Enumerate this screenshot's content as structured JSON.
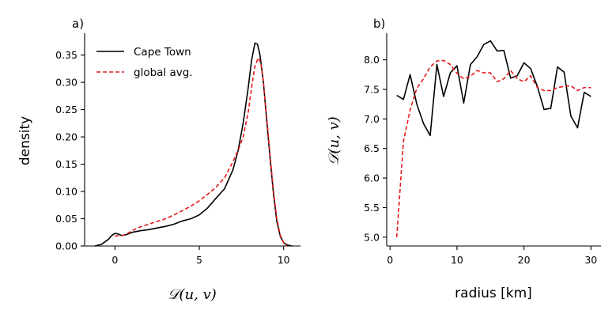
{
  "chart_data": [
    {
      "type": "line",
      "panel_label": "a)",
      "xlabel": "𝒟(u, v)",
      "ylabel": "density",
      "xlim": [
        -1.8,
        11.0
      ],
      "ylim": [
        0.0,
        0.39
      ],
      "xticks": [
        0,
        5,
        10
      ],
      "yticks": [
        0.0,
        0.05,
        0.1,
        0.15,
        0.2,
        0.25,
        0.3,
        0.35
      ],
      "xtick_labels": [
        "0",
        "5",
        "10"
      ],
      "ytick_labels": [
        "0.00",
        "0.05",
        "0.10",
        "0.15",
        "0.20",
        "0.25",
        "0.30",
        "0.35"
      ],
      "grid": false,
      "legend_position": "top-left",
      "series": [
        {
          "name": "Cape Town",
          "color": "#000000",
          "style": "solid",
          "x": [
            -1.2,
            -0.8,
            -0.4,
            -0.2,
            0,
            0.2,
            0.4,
            0.7,
            1.0,
            1.5,
            2.0,
            2.5,
            3.0,
            3.5,
            4.0,
            4.5,
            5.0,
            5.5,
            6.0,
            6.5,
            7.0,
            7.3,
            7.6,
            7.9,
            8.1,
            8.3,
            8.45,
            8.6,
            8.8,
            9.0,
            9.2,
            9.4,
            9.6,
            9.8,
            10.0,
            10.2,
            10.5
          ],
          "y": [
            0.0,
            0.003,
            0.012,
            0.019,
            0.023,
            0.022,
            0.019,
            0.021,
            0.025,
            0.028,
            0.03,
            0.033,
            0.036,
            0.04,
            0.046,
            0.05,
            0.057,
            0.07,
            0.088,
            0.105,
            0.14,
            0.175,
            0.225,
            0.29,
            0.34,
            0.372,
            0.37,
            0.35,
            0.3,
            0.23,
            0.16,
            0.095,
            0.045,
            0.018,
            0.006,
            0.002,
            0.0
          ]
        },
        {
          "name": "global avg.",
          "color": "#e41a1c",
          "style": "dashed",
          "x": [
            0,
            0.2,
            0.4,
            0.7,
            1.0,
            1.5,
            2.0,
            2.5,
            3.0,
            3.5,
            4.0,
            4.5,
            5.0,
            5.5,
            6.0,
            6.5,
            7.0,
            7.3,
            7.6,
            7.9,
            8.1,
            8.3,
            8.5,
            8.65,
            8.8,
            9.0,
            9.2,
            9.4,
            9.6,
            9.8,
            10.0,
            10.2
          ],
          "y": [
            0.018,
            0.019,
            0.019,
            0.022,
            0.028,
            0.035,
            0.04,
            0.045,
            0.05,
            0.057,
            0.065,
            0.073,
            0.083,
            0.095,
            0.108,
            0.125,
            0.155,
            0.175,
            0.2,
            0.245,
            0.29,
            0.33,
            0.345,
            0.335,
            0.3,
            0.235,
            0.165,
            0.1,
            0.05,
            0.02,
            0.006,
            0.0
          ]
        }
      ]
    },
    {
      "type": "line",
      "panel_label": "b)",
      "xlabel": "radius [km]",
      "ylabel": "𝒟(u, v)",
      "xlim": [
        -0.5,
        31.5
      ],
      "ylim": [
        4.85,
        8.45
      ],
      "xticks": [
        0,
        10,
        20,
        30
      ],
      "yticks": [
        5.0,
        5.5,
        6.0,
        6.5,
        7.0,
        7.5,
        8.0
      ],
      "xtick_labels": [
        "0",
        "10",
        "20",
        "30"
      ],
      "ytick_labels": [
        "5.0",
        "5.5",
        "6.0",
        "6.5",
        "7.0",
        "7.5",
        "8.0"
      ],
      "grid": false,
      "series": [
        {
          "name": "Cape Town",
          "color": "#000000",
          "style": "solid",
          "x": [
            1,
            2,
            3,
            4,
            5,
            6,
            7,
            8,
            9,
            10,
            11,
            12,
            13,
            14,
            15,
            16,
            17,
            18,
            19,
            20,
            21,
            22,
            23,
            24,
            25,
            26,
            27,
            28,
            29,
            30
          ],
          "y": [
            7.4,
            7.33,
            7.75,
            7.25,
            6.92,
            6.72,
            7.92,
            7.38,
            7.78,
            7.9,
            7.27,
            7.92,
            8.05,
            8.26,
            8.32,
            8.15,
            8.16,
            7.69,
            7.73,
            7.95,
            7.85,
            7.55,
            7.16,
            7.18,
            7.88,
            7.79,
            7.05,
            6.85,
            7.45,
            7.38
          ]
        },
        {
          "name": "global avg.",
          "color": "#e41a1c",
          "style": "dashed",
          "x": [
            1,
            2,
            3,
            4,
            5,
            6,
            7,
            8,
            9,
            10,
            11,
            12,
            13,
            14,
            15,
            16,
            17,
            18,
            19,
            20,
            21,
            22,
            23,
            24,
            25,
            26,
            27,
            28,
            29,
            30
          ],
          "y": [
            5.0,
            6.62,
            7.15,
            7.52,
            7.68,
            7.88,
            7.98,
            7.99,
            7.92,
            7.77,
            7.68,
            7.72,
            7.82,
            7.78,
            7.78,
            7.63,
            7.68,
            7.82,
            7.68,
            7.63,
            7.73,
            7.53,
            7.48,
            7.48,
            7.53,
            7.55,
            7.56,
            7.48,
            7.53,
            7.53
          ]
        }
      ]
    }
  ]
}
